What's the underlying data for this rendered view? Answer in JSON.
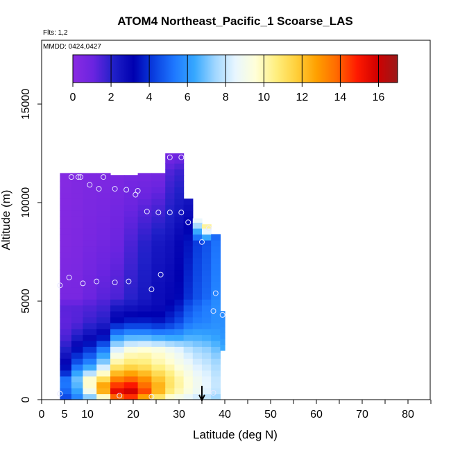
{
  "chart_data": {
    "type": "heatmap",
    "title": "ATOM4 Northeast_Pacific_1 Scoarse_LAS",
    "flights_label": "Flts: 1,2",
    "dates_label": "MMDD: 0424,0427",
    "xlabel": "Latitude (deg N)",
    "ylabel": "Altitude (m)",
    "xlim": [
      0,
      85
    ],
    "ylim": [
      0,
      17500
    ],
    "x_ticks": [
      0,
      5,
      10,
      20,
      30,
      40,
      50,
      60,
      70,
      80
    ],
    "y_ticks": [
      0,
      5000,
      10000,
      15000
    ],
    "colorbar": {
      "min": 0,
      "max": 17,
      "ticks": [
        0,
        2,
        4,
        6,
        8,
        10,
        12,
        14,
        16
      ],
      "stops": [
        "#8a2be2",
        "#6a24e0",
        "#2020c8",
        "#0000b0",
        "#0a3fe0",
        "#1e78ff",
        "#36a8ff",
        "#9fd6ff",
        "#e8f6ff",
        "#ffffd8",
        "#ffef80",
        "#ffd03c",
        "#ffa000",
        "#ff6a00",
        "#ff1a00",
        "#d00000",
        "#9a1a1a"
      ]
    },
    "arrow_marker_latitude": 35,
    "columns": [
      {
        "x": [
          4,
          6.5
        ],
        "top": 11500,
        "vals": [
          [
            0,
            4.2
          ],
          [
            300,
            4.8
          ],
          [
            600,
            5.2
          ],
          [
            1000,
            5.4
          ],
          [
            1400,
            3.8
          ],
          [
            1800,
            3.2
          ],
          [
            2500,
            2.2
          ],
          [
            3200,
            1.5
          ],
          [
            3900,
            1.2
          ],
          [
            4800,
            1.3
          ],
          [
            5200,
            0.6
          ],
          [
            8000,
            0.3
          ],
          [
            11500,
            0.2
          ]
        ]
      },
      {
        "x": [
          6.5,
          9
        ],
        "top": 11500,
        "vals": [
          [
            0,
            5.3
          ],
          [
            300,
            6.0
          ],
          [
            600,
            6.5
          ],
          [
            1000,
            7.0
          ],
          [
            1400,
            6.2
          ],
          [
            1800,
            4.8
          ],
          [
            2500,
            3.5
          ],
          [
            3200,
            2.2
          ],
          [
            3900,
            1.4
          ],
          [
            4800,
            1.3
          ],
          [
            5200,
            0.6
          ],
          [
            8000,
            0.4
          ],
          [
            11500,
            0.3
          ]
        ]
      },
      {
        "x": [
          9,
          12
        ],
        "top": 11500,
        "vals": [
          [
            0,
            6.0
          ],
          [
            300,
            8.5
          ],
          [
            600,
            9.5
          ],
          [
            1000,
            10.0
          ],
          [
            1400,
            7.5
          ],
          [
            1800,
            5.8
          ],
          [
            2500,
            4.2
          ],
          [
            3200,
            2.8
          ],
          [
            3900,
            1.8
          ],
          [
            4800,
            1.4
          ],
          [
            5200,
            1.0
          ],
          [
            8000,
            0.6
          ],
          [
            11500,
            0.4
          ]
        ]
      },
      {
        "x": [
          12,
          15
        ],
        "top": 11500,
        "vals": [
          [
            0,
            8.0
          ],
          [
            300,
            11.5
          ],
          [
            600,
            13.2
          ],
          [
            1000,
            11.5
          ],
          [
            1400,
            9.5
          ],
          [
            1800,
            7.5
          ],
          [
            2500,
            5.6
          ],
          [
            3200,
            3.4
          ],
          [
            3900,
            2.1
          ],
          [
            4800,
            1.6
          ],
          [
            5200,
            1.3
          ],
          [
            8000,
            0.8
          ],
          [
            11500,
            0.4
          ]
        ]
      },
      {
        "x": [
          15,
          18
        ],
        "top": 11400,
        "vals": [
          [
            0,
            12.0
          ],
          [
            300,
            15.8
          ],
          [
            600,
            15.0
          ],
          [
            1000,
            13.5
          ],
          [
            1400,
            12.0
          ],
          [
            1800,
            10.5
          ],
          [
            2500,
            8.5
          ],
          [
            3200,
            6.0
          ],
          [
            3900,
            3.5
          ],
          [
            4800,
            2.2
          ],
          [
            5200,
            1.5
          ],
          [
            8000,
            1.0
          ],
          [
            11500,
            0.5
          ]
        ]
      },
      {
        "x": [
          18,
          21
        ],
        "top": 11400,
        "vals": [
          [
            0,
            13.0
          ],
          [
            300,
            16.2
          ],
          [
            600,
            15.5
          ],
          [
            1000,
            14.0
          ],
          [
            1400,
            12.5
          ],
          [
            1800,
            11.0
          ],
          [
            2500,
            9.5
          ],
          [
            3200,
            6.5
          ],
          [
            3900,
            3.8
          ],
          [
            4800,
            2.4
          ],
          [
            5200,
            2.0
          ],
          [
            8000,
            1.5
          ],
          [
            11500,
            0.6
          ]
        ]
      },
      {
        "x": [
          21,
          24
        ],
        "top": 11500,
        "vals": [
          [
            0,
            11.0
          ],
          [
            300,
            14.5
          ],
          [
            600,
            14.0
          ],
          [
            1000,
            13.2
          ],
          [
            1400,
            12.0
          ],
          [
            1800,
            10.8
          ],
          [
            2500,
            9.8
          ],
          [
            3200,
            6.5
          ],
          [
            3900,
            3.8
          ],
          [
            4800,
            2.6
          ],
          [
            5200,
            2.4
          ],
          [
            8000,
            2.0
          ],
          [
            11500,
            0.6
          ]
        ]
      },
      {
        "x": [
          24,
          27
        ],
        "top": 11500,
        "vals": [
          [
            0,
            10.0
          ],
          [
            300,
            12.0
          ],
          [
            600,
            12.5
          ],
          [
            1000,
            12.0
          ],
          [
            1400,
            11.2
          ],
          [
            1800,
            10.2
          ],
          [
            2500,
            9.5
          ],
          [
            3200,
            6.3
          ],
          [
            3900,
            3.6
          ],
          [
            4800,
            2.8
          ],
          [
            5200,
            2.8
          ],
          [
            8000,
            2.4
          ],
          [
            11500,
            0.7
          ]
        ]
      },
      {
        "x": [
          27,
          29
        ],
        "top": 12500,
        "vals": [
          [
            0,
            8.8
          ],
          [
            300,
            10.5
          ],
          [
            600,
            11.0
          ],
          [
            1000,
            11.0
          ],
          [
            1400,
            10.5
          ],
          [
            1800,
            9.8
          ],
          [
            2500,
            9.0
          ],
          [
            3200,
            6.2
          ],
          [
            3900,
            4.0
          ],
          [
            4800,
            3.2
          ],
          [
            5200,
            3.0
          ],
          [
            8000,
            2.6
          ],
          [
            11500,
            1.5
          ],
          [
            12500,
            0.6
          ]
        ]
      },
      {
        "x": [
          29,
          31
        ],
        "top": 12500,
        "vals": [
          [
            0,
            8.5
          ],
          [
            300,
            9.8
          ],
          [
            600,
            10.2
          ],
          [
            1000,
            10.2
          ],
          [
            1400,
            9.8
          ],
          [
            1800,
            9.2
          ],
          [
            2500,
            8.6
          ],
          [
            3200,
            6.2
          ],
          [
            3900,
            4.5
          ],
          [
            4800,
            3.6
          ],
          [
            5200,
            3.3
          ],
          [
            8000,
            3.0
          ],
          [
            11500,
            1.8
          ],
          [
            12500,
            0.8
          ]
        ]
      },
      {
        "x": [
          31,
          33
        ],
        "top": 10200,
        "vals": [
          [
            0,
            8.2
          ],
          [
            300,
            9.2
          ],
          [
            600,
            9.5
          ],
          [
            1000,
            9.5
          ],
          [
            1400,
            9.2
          ],
          [
            1800,
            8.8
          ],
          [
            2500,
            8.0
          ],
          [
            3200,
            6.5
          ],
          [
            3900,
            5.2
          ],
          [
            4800,
            4.5
          ],
          [
            5200,
            4.0
          ],
          [
            8000,
            3.5
          ],
          [
            10200,
            2.5
          ]
        ]
      },
      {
        "x": [
          33,
          35
        ],
        "top": 9200,
        "vals": [
          [
            0,
            7.8
          ],
          [
            300,
            8.7
          ],
          [
            600,
            8.9
          ],
          [
            1000,
            8.9
          ],
          [
            1400,
            8.6
          ],
          [
            1800,
            8.3
          ],
          [
            2500,
            7.6
          ],
          [
            3200,
            6.5
          ],
          [
            3900,
            5.5
          ],
          [
            4800,
            5.0
          ],
          [
            5200,
            4.6
          ],
          [
            8000,
            4.2
          ],
          [
            9200,
            9.0
          ]
        ]
      },
      {
        "x": [
          35,
          37
        ],
        "top": 8900,
        "vals": [
          [
            0,
            7.6
          ],
          [
            300,
            8.3
          ],
          [
            600,
            8.5
          ],
          [
            1000,
            8.5
          ],
          [
            1400,
            8.3
          ],
          [
            1800,
            8.0
          ],
          [
            2500,
            7.4
          ],
          [
            3200,
            6.4
          ],
          [
            3900,
            5.6
          ],
          [
            4800,
            5.4
          ],
          [
            5200,
            5.0
          ],
          [
            8000,
            4.6
          ],
          [
            8900,
            11.0
          ]
        ]
      },
      {
        "x": [
          37,
          39
        ],
        "top": 8400,
        "vals": [
          [
            0,
            7.2
          ],
          [
            300,
            7.8
          ],
          [
            600,
            8.0
          ],
          [
            1000,
            8.0
          ],
          [
            1400,
            7.8
          ],
          [
            1800,
            7.6
          ],
          [
            2500,
            7.0
          ],
          [
            3200,
            6.2
          ],
          [
            3900,
            5.8
          ],
          [
            4800,
            5.8
          ],
          [
            5200,
            5.6
          ],
          [
            8000,
            5.2
          ],
          [
            8400,
            5.0
          ]
        ]
      },
      {
        "x": [
          39,
          40
        ],
        "top": 4500,
        "vals": [
          [
            2500,
            6.5
          ],
          [
            3200,
            6.0
          ],
          [
            3900,
            5.8
          ],
          [
            4500,
            5.8
          ]
        ]
      }
    ],
    "observation_points": [
      [
        4,
        300
      ],
      [
        6,
        6200
      ],
      [
        4,
        5800
      ],
      [
        6.5,
        11300
      ],
      [
        8,
        11300
      ],
      [
        8.5,
        11300
      ],
      [
        10.5,
        10900
      ],
      [
        12.5,
        10700
      ],
      [
        13.5,
        11300
      ],
      [
        16,
        10700
      ],
      [
        18.5,
        10650
      ],
      [
        20.5,
        10400
      ],
      [
        21,
        10600
      ],
      [
        9,
        5900
      ],
      [
        12,
        6000
      ],
      [
        16,
        5950
      ],
      [
        19,
        6000
      ],
      [
        23,
        9550
      ],
      [
        25.5,
        9500
      ],
      [
        28,
        9500
      ],
      [
        30.5,
        9500
      ],
      [
        32,
        9000
      ],
      [
        24,
        5600
      ],
      [
        26,
        6350
      ],
      [
        28,
        12300
      ],
      [
        30.5,
        12300
      ],
      [
        35,
        8000
      ],
      [
        36.5,
        8700
      ],
      [
        37.5,
        4500
      ],
      [
        38,
        5400
      ],
      [
        39.5,
        4300
      ],
      [
        17,
        200
      ],
      [
        24,
        150
      ],
      [
        37.5,
        350
      ]
    ]
  }
}
